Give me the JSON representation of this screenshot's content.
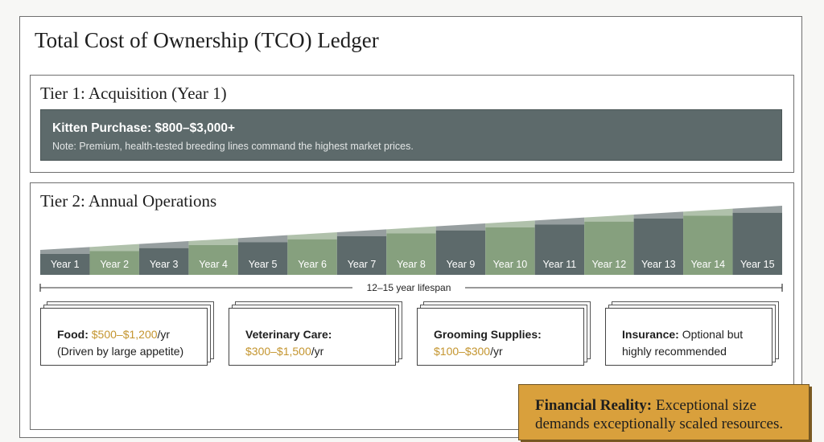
{
  "title": "Total Cost of Ownership (TCO) Ledger",
  "tier1": {
    "title": "Tier 1: Acquisition (Year 1)",
    "heading": "Kitten Purchase: $800–$3,000+",
    "note": "Note: Premium, health-tested breeding lines command the highest market prices."
  },
  "tier2": {
    "title": "Tier 2: Annual Operations",
    "years": [
      "Year 1",
      "Year 2",
      "Year 3",
      "Year 4",
      "Year 5",
      "Year 6",
      "Year 7",
      "Year 8",
      "Year 9",
      "Year 10",
      "Year 11",
      "Year 12",
      "Year 13",
      "Year 14",
      "Year 15"
    ],
    "lifespan": "12–15 year lifespan",
    "cards": [
      {
        "label": "Food:",
        "range": "$500–$1,200",
        "unit": "/yr",
        "detail": "(Driven by large appetite)"
      },
      {
        "label": "Veterinary Care:",
        "range": "$300–$1,500",
        "unit": "/yr"
      },
      {
        "label": "Grooming Supplies:",
        "range": "$100–$300",
        "unit": "/yr"
      },
      {
        "label": "Insurance:",
        "detail": "Optional but",
        "detail2": "highly recommended"
      }
    ]
  },
  "reality": {
    "label": "Financial Reality:",
    "text": "Exceptional size",
    "text2": "demands exceptionally scaled resources."
  },
  "colors": {
    "slate": "#5d6a6b",
    "sage": "#86a07e",
    "gold": "#c4952f",
    "amber": "#d9a03c"
  }
}
